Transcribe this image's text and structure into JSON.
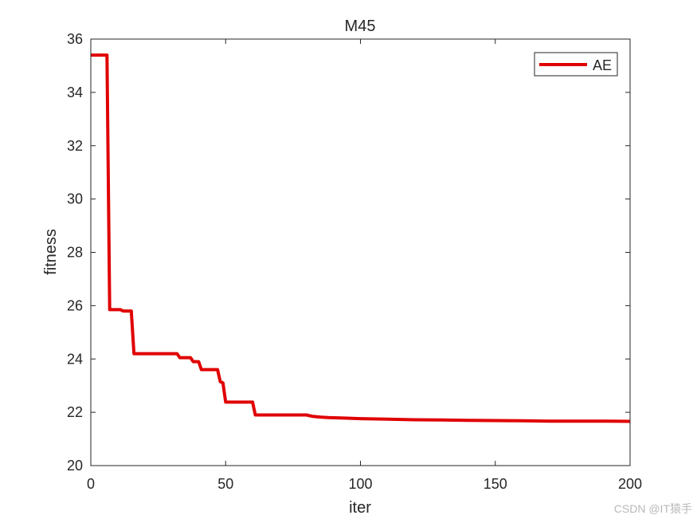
{
  "watermark": "CSDN @IT猿手",
  "colors": {
    "series": "#e00000",
    "axis": "#262626",
    "background": "#ffffff"
  },
  "chart_data": {
    "type": "line",
    "title": "M45",
    "xlabel": "iter",
    "ylabel": "fitness",
    "xlim": [
      0,
      200
    ],
    "ylim": [
      20,
      36
    ],
    "xticks": [
      "0",
      "50",
      "100",
      "150",
      "200"
    ],
    "yticks": [
      "20",
      "22",
      "24",
      "26",
      "28",
      "30",
      "32",
      "34",
      "36"
    ],
    "grid": false,
    "legend_position": "top-right",
    "series": [
      {
        "name": "AE",
        "color": "#e00000",
        "x": [
          0,
          6,
          7,
          11,
          12,
          15,
          16,
          32,
          33,
          37,
          38,
          40,
          41,
          47,
          48,
          49,
          50,
          60,
          61,
          80,
          82,
          85,
          88,
          95,
          100,
          110,
          120,
          130,
          140,
          150,
          160,
          170,
          180,
          190,
          200
        ],
        "y": [
          35.4,
          35.4,
          25.85,
          25.85,
          25.8,
          25.8,
          24.2,
          24.2,
          24.05,
          24.05,
          23.9,
          23.9,
          23.6,
          23.6,
          23.15,
          23.1,
          22.38,
          22.38,
          21.9,
          21.9,
          21.85,
          21.82,
          21.8,
          21.78,
          21.76,
          21.74,
          21.72,
          21.71,
          21.7,
          21.69,
          21.68,
          21.67,
          21.67,
          21.67,
          21.66
        ]
      }
    ]
  }
}
